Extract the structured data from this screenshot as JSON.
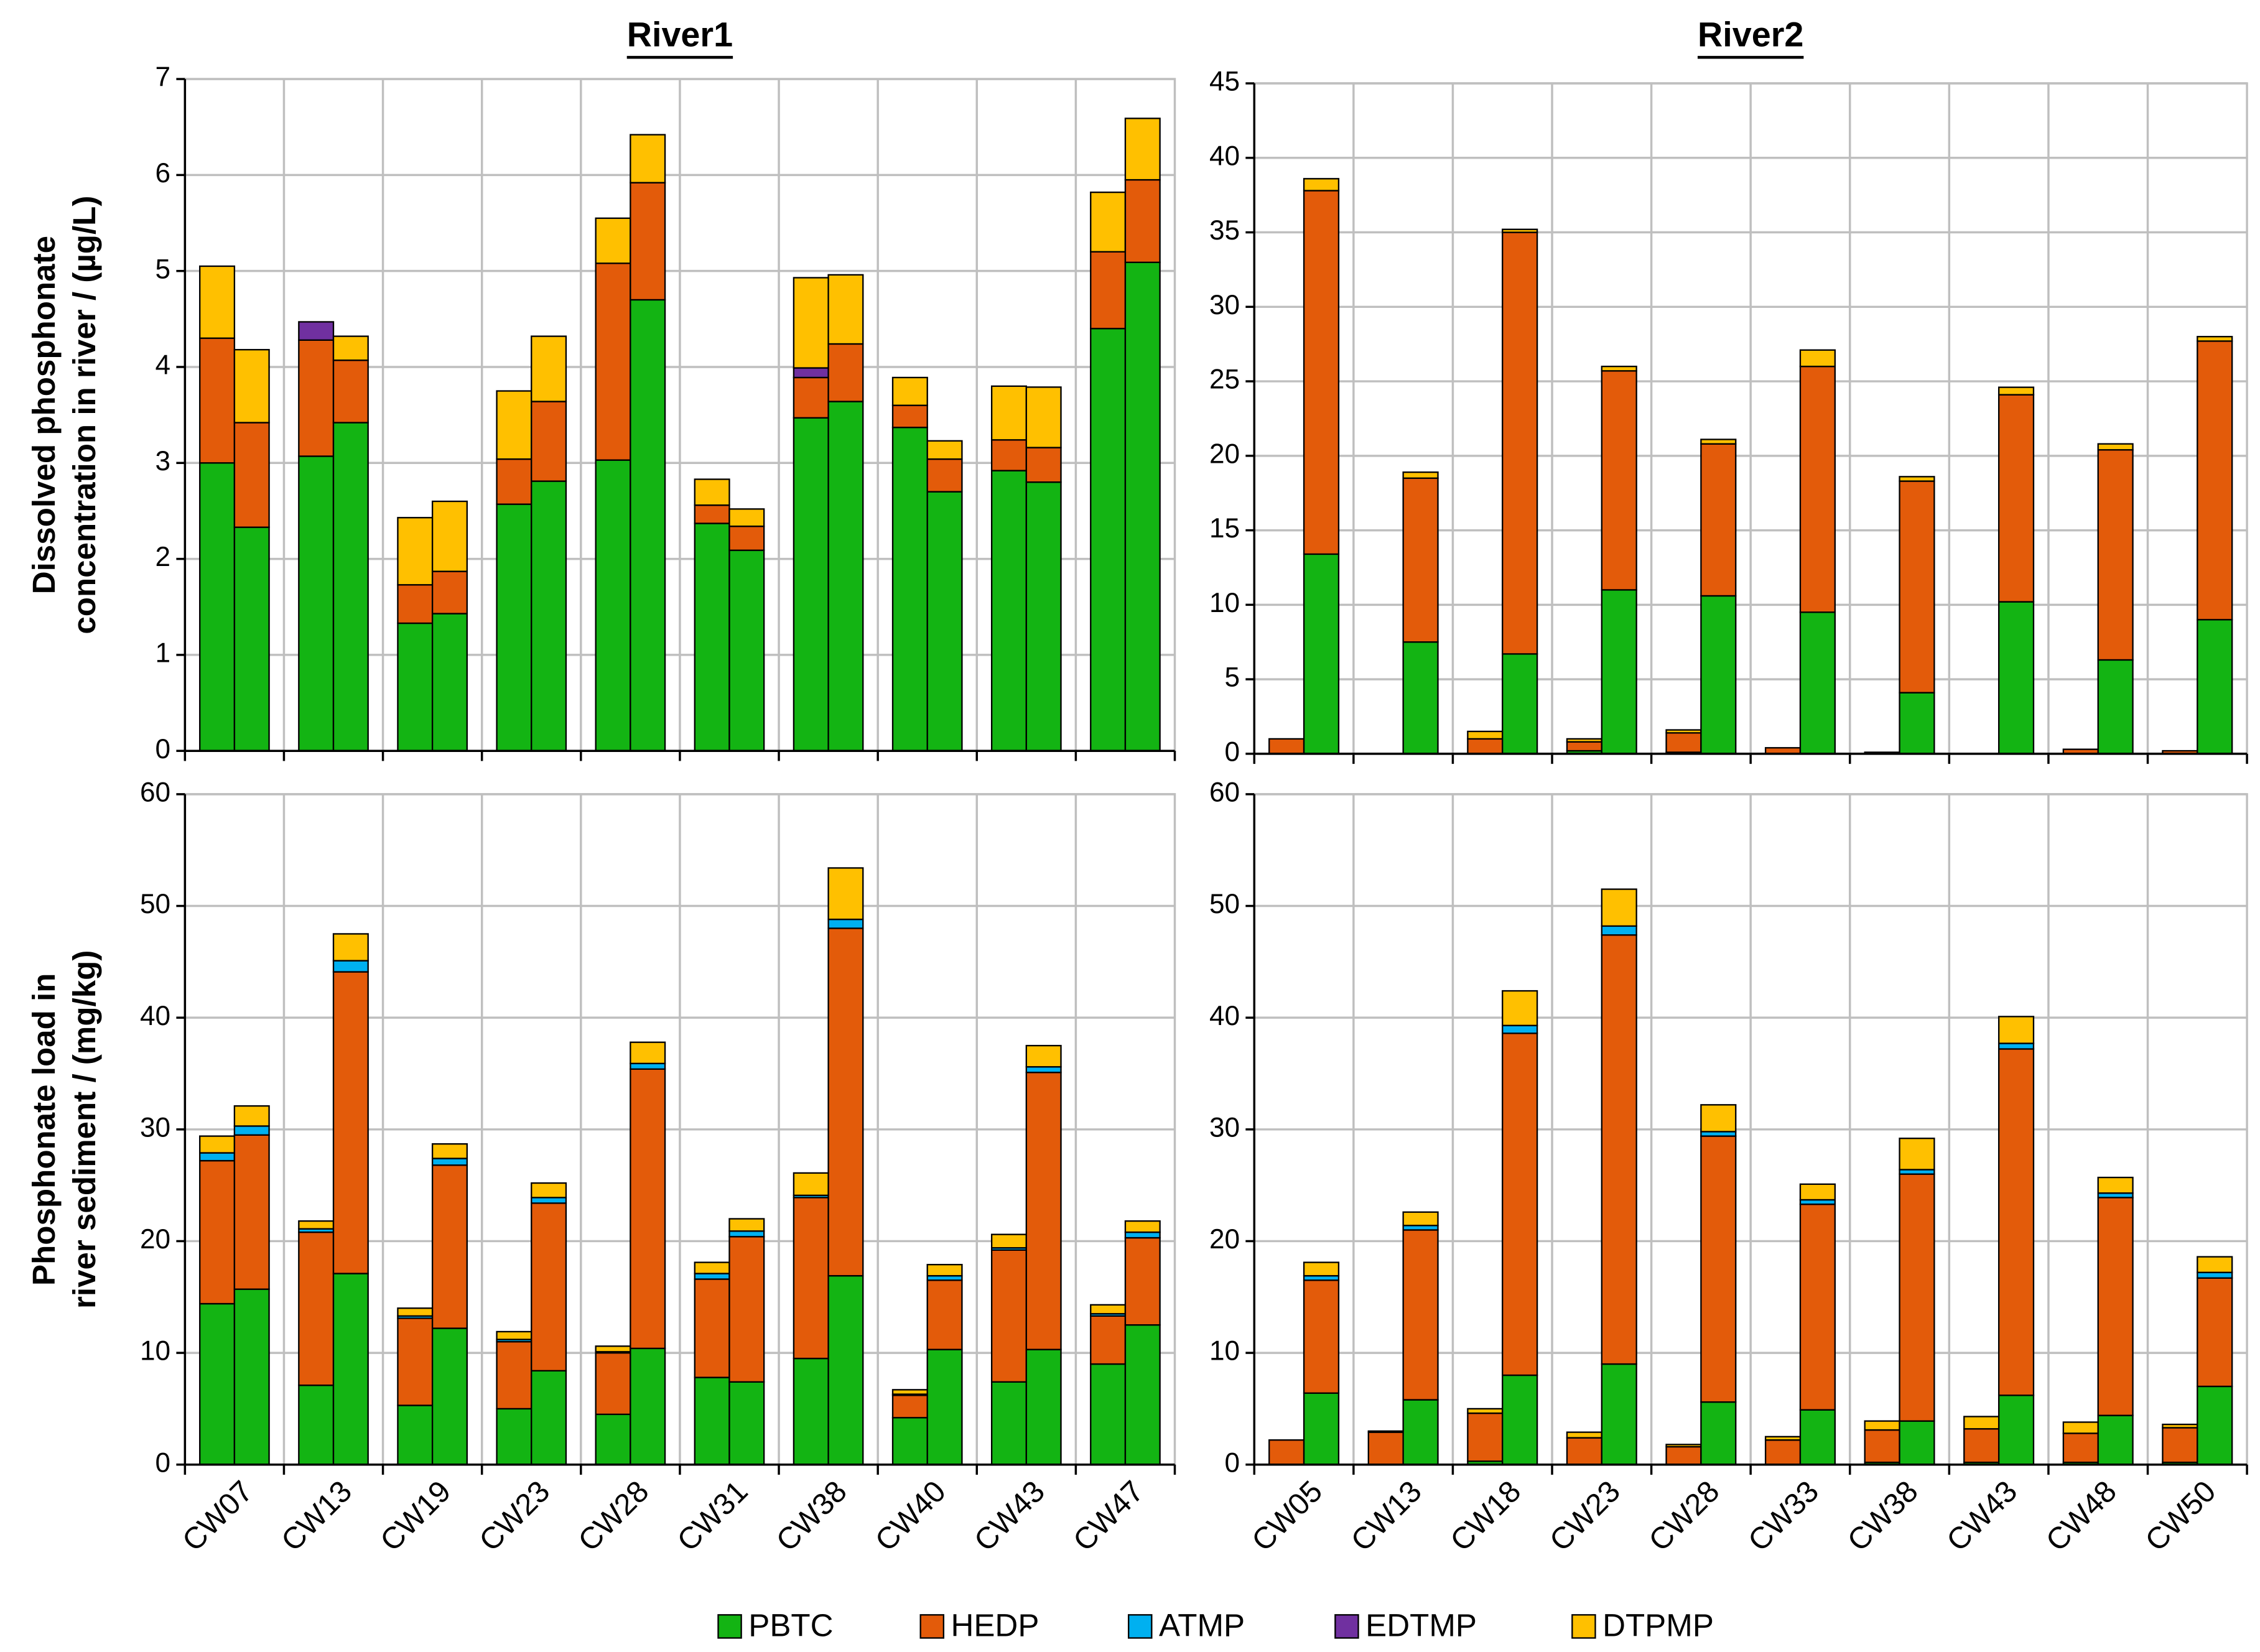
{
  "legend": [
    {
      "name": "PBTC",
      "color": "#13b413"
    },
    {
      "name": "HEDP",
      "color": "#e35b0a"
    },
    {
      "name": "ATMP",
      "color": "#00b0f0"
    },
    {
      "name": "EDTMP",
      "color": "#7030a0"
    },
    {
      "name": "DTPMP",
      "color": "#ffc000"
    }
  ],
  "chart_data": [
    {
      "type": "bar",
      "stacked": true,
      "grid": true,
      "title": "River1",
      "categories": [
        "CW07",
        "CW13",
        "CW19",
        "CW23",
        "CW28",
        "CW31",
        "CW38",
        "CW40",
        "CW43",
        "CW47"
      ],
      "panels": [
        {
          "ylabel": [
            "Dissolved phosphonate",
            "concentration in river / (µg/L)"
          ],
          "ylim": [
            0,
            7
          ],
          "yticks": [
            0,
            1,
            2,
            3,
            4,
            5,
            6,
            7
          ],
          "series": [
            {
              "values": [
                [
                  3.0,
                  2.33
                ],
                [
                  3.07,
                  3.42
                ],
                [
                  1.33,
                  1.43
                ],
                [
                  2.57,
                  2.81
                ],
                [
                  3.03,
                  4.7
                ],
                [
                  2.37,
                  2.09
                ],
                [
                  3.47,
                  3.64
                ],
                [
                  3.37,
                  2.7
                ],
                [
                  2.92,
                  2.8
                ],
                [
                  4.4,
                  5.09
                ]
              ]
            },
            {
              "values": [
                [
                  1.3,
                  1.09
                ],
                [
                  1.21,
                  0.65
                ],
                [
                  0.4,
                  0.44
                ],
                [
                  0.47,
                  0.83
                ],
                [
                  2.05,
                  1.22
                ],
                [
                  0.19,
                  0.25
                ],
                [
                  0.42,
                  0.6
                ],
                [
                  0.23,
                  0.34
                ],
                [
                  0.32,
                  0.36
                ],
                [
                  0.8,
                  0.86
                ]
              ]
            },
            {
              "values": [
                [
                  0,
                  0
                ],
                [
                  0,
                  0
                ],
                [
                  0,
                  0
                ],
                [
                  0,
                  0
                ],
                [
                  0,
                  0
                ],
                [
                  0,
                  0
                ],
                [
                  0,
                  0
                ],
                [
                  0,
                  0
                ],
                [
                  0,
                  0
                ],
                [
                  0,
                  0
                ]
              ]
            },
            {
              "values": [
                [
                  0,
                  0
                ],
                [
                  0.19,
                  0
                ],
                [
                  0,
                  0
                ],
                [
                  0,
                  0
                ],
                [
                  0,
                  0
                ],
                [
                  0,
                  0
                ],
                [
                  0.1,
                  0
                ],
                [
                  0,
                  0
                ],
                [
                  0,
                  0
                ],
                [
                  0,
                  0
                ]
              ]
            },
            {
              "values": [
                [
                  0.75,
                  0.76
                ],
                [
                  0,
                  0.25
                ],
                [
                  0.7,
                  0.73
                ],
                [
                  0.71,
                  0.68
                ],
                [
                  0.47,
                  0.5
                ],
                [
                  0.27,
                  0.18
                ],
                [
                  0.94,
                  0.72
                ],
                [
                  0.29,
                  0.19
                ],
                [
                  0.56,
                  0.63
                ],
                [
                  0.62,
                  0.64
                ]
              ]
            }
          ]
        },
        {
          "ylabel": [
            "Phosphonate load in",
            "river sediment / (mg/kg)"
          ],
          "ylim": [
            0,
            60
          ],
          "yticks": [
            0,
            10,
            20,
            30,
            40,
            50,
            60
          ],
          "series": [
            {
              "values": [
                [
                  14.4,
                  15.7
                ],
                [
                  7.1,
                  17.1
                ],
                [
                  5.3,
                  12.2
                ],
                [
                  5.0,
                  8.4
                ],
                [
                  4.5,
                  10.4
                ],
                [
                  7.8,
                  7.4
                ],
                [
                  9.5,
                  16.9
                ],
                [
                  4.2,
                  10.3
                ],
                [
                  7.4,
                  10.3
                ],
                [
                  9.0,
                  12.5
                ]
              ]
            },
            {
              "values": [
                [
                  12.8,
                  13.8
                ],
                [
                  13.7,
                  27
                ],
                [
                  7.8,
                  14.6
                ],
                [
                  6.0,
                  15
                ],
                [
                  5.5,
                  25
                ],
                [
                  8.8,
                  13
                ],
                [
                  14.4,
                  31.1
                ],
                [
                  2.0,
                  6.2
                ],
                [
                  11.8,
                  24.8
                ],
                [
                  4.3,
                  7.8
                ]
              ]
            },
            {
              "values": [
                [
                  0.7,
                  0.8
                ],
                [
                  0.3,
                  1.0
                ],
                [
                  0.2,
                  0.6
                ],
                [
                  0.2,
                  0.5
                ],
                [
                  0.1,
                  0.5
                ],
                [
                  0.5,
                  0.5
                ],
                [
                  0.2,
                  0.8
                ],
                [
                  0.1,
                  0.4
                ],
                [
                  0.2,
                  0.5
                ],
                [
                  0.2,
                  0.5
                ]
              ]
            },
            {
              "values": [
                [
                  0,
                  0
                ],
                [
                  0,
                  0
                ],
                [
                  0,
                  0
                ],
                [
                  0,
                  0
                ],
                [
                  0,
                  0
                ],
                [
                  0,
                  0
                ],
                [
                  0,
                  0
                ],
                [
                  0,
                  0
                ],
                [
                  0,
                  0
                ],
                [
                  0,
                  0
                ]
              ]
            },
            {
              "values": [
                [
                  1.5,
                  1.8
                ],
                [
                  0.7,
                  2.4
                ],
                [
                  0.7,
                  1.3
                ],
                [
                  0.7,
                  1.3
                ],
                [
                  0.5,
                  1.9
                ],
                [
                  1.0,
                  1.1
                ],
                [
                  2.0,
                  4.6
                ],
                [
                  0.4,
                  1.0
                ],
                [
                  1.2,
                  1.9
                ],
                [
                  0.8,
                  1.0
                ]
              ]
            }
          ]
        }
      ]
    },
    {
      "type": "bar",
      "stacked": true,
      "grid": true,
      "title": "River2",
      "categories": [
        "CW05",
        "CW13",
        "CW18",
        "CW23",
        "CW28",
        "CW33",
        "CW38",
        "CW43",
        "CW48",
        "CW50"
      ],
      "panels": [
        {
          "ylim": [
            0,
            45
          ],
          "yticks": [
            0,
            5,
            10,
            15,
            20,
            25,
            30,
            35,
            40,
            45
          ],
          "series": [
            {
              "values": [
                [
                  0,
                  13.4
                ],
                [
                  0,
                  7.5
                ],
                [
                  0,
                  6.7
                ],
                [
                  0.2,
                  11.0
                ],
                [
                  0.1,
                  10.6
                ],
                [
                  0,
                  9.5
                ],
                [
                  0.1,
                  4.1
                ],
                [
                  0,
                  10.2
                ],
                [
                  0,
                  6.3
                ],
                [
                  0,
                  9.0
                ]
              ]
            },
            {
              "values": [
                [
                  1.0,
                  24.4
                ],
                [
                  0,
                  11
                ],
                [
                  1.0,
                  28.3
                ],
                [
                  0.6,
                  14.7
                ],
                [
                  1.3,
                  10.2
                ],
                [
                  0.4,
                  16.5
                ],
                [
                  0,
                  14.2
                ],
                [
                  0,
                  13.9
                ],
                [
                  0.3,
                  14.1
                ],
                [
                  0.2,
                  18.7
                ]
              ]
            },
            {
              "values": [
                [
                  0,
                  0
                ],
                [
                  0,
                  0
                ],
                [
                  0,
                  0
                ],
                [
                  0,
                  0
                ],
                [
                  0,
                  0
                ],
                [
                  0,
                  0
                ],
                [
                  0,
                  0
                ],
                [
                  0,
                  0
                ],
                [
                  0,
                  0
                ],
                [
                  0,
                  0
                ]
              ]
            },
            {
              "values": [
                [
                  0,
                  0
                ],
                [
                  0,
                  0
                ],
                [
                  0,
                  0
                ],
                [
                  0,
                  0
                ],
                [
                  0,
                  0
                ],
                [
                  0,
                  0
                ],
                [
                  0,
                  0
                ],
                [
                  0,
                  0
                ],
                [
                  0,
                  0
                ],
                [
                  0,
                  0
                ]
              ]
            },
            {
              "values": [
                [
                  0,
                  0.8
                ],
                [
                  0,
                  0.4
                ],
                [
                  0.5,
                  0.2
                ],
                [
                  0.2,
                  0.3
                ],
                [
                  0.2,
                  0.3
                ],
                [
                  0,
                  1.1
                ],
                [
                  0,
                  0.3
                ],
                [
                  0,
                  0.5
                ],
                [
                  0,
                  0.4
                ],
                [
                  0,
                  0.3
                ]
              ]
            }
          ]
        },
        {
          "ylim": [
            0,
            60
          ],
          "yticks": [
            0,
            10,
            20,
            30,
            40,
            50,
            60
          ],
          "series": [
            {
              "values": [
                [
                  0,
                  6.4
                ],
                [
                  0,
                  5.8
                ],
                [
                  0.3,
                  8.0
                ],
                [
                  0,
                  9.0
                ],
                [
                  0,
                  5.6
                ],
                [
                  0,
                  4.9
                ],
                [
                  0.2,
                  3.9
                ],
                [
                  0.2,
                  6.2
                ],
                [
                  0.2,
                  4.4
                ],
                [
                  0.2,
                  7.0
                ]
              ]
            },
            {
              "values": [
                [
                  2.2,
                  10.1
                ],
                [
                  2.9,
                  15.2
                ],
                [
                  4.3,
                  30.6
                ],
                [
                  2.4,
                  38.4
                ],
                [
                  1.6,
                  23.8
                ],
                [
                  2.2,
                  18.4
                ],
                [
                  2.9,
                  22.1
                ],
                [
                  3.0,
                  31
                ],
                [
                  2.6,
                  19.5
                ],
                [
                  3.1,
                  9.7
                ]
              ]
            },
            {
              "values": [
                [
                  0,
                  0.4
                ],
                [
                  0,
                  0.4
                ],
                [
                  0,
                  0.7
                ],
                [
                  0,
                  0.8
                ],
                [
                  0,
                  0.4
                ],
                [
                  0,
                  0.4
                ],
                [
                  0,
                  0.4
                ],
                [
                  0,
                  0.5
                ],
                [
                  0,
                  0.4
                ],
                [
                  0,
                  0.5
                ]
              ]
            },
            {
              "values": [
                [
                  0,
                  0
                ],
                [
                  0,
                  0
                ],
                [
                  0,
                  0
                ],
                [
                  0,
                  0
                ],
                [
                  0,
                  0
                ],
                [
                  0,
                  0
                ],
                [
                  0,
                  0
                ],
                [
                  0,
                  0
                ],
                [
                  0,
                  0
                ],
                [
                  0,
                  0
                ]
              ]
            },
            {
              "values": [
                [
                  0,
                  1.2
                ],
                [
                  0.1,
                  1.2
                ],
                [
                  0.4,
                  3.1
                ],
                [
                  0.5,
                  3.3
                ],
                [
                  0.2,
                  2.4
                ],
                [
                  0.3,
                  1.4
                ],
                [
                  0.8,
                  2.8
                ],
                [
                  1.1,
                  2.4
                ],
                [
                  1.0,
                  1.4
                ],
                [
                  0.3,
                  1.4
                ]
              ]
            }
          ]
        }
      ]
    }
  ]
}
